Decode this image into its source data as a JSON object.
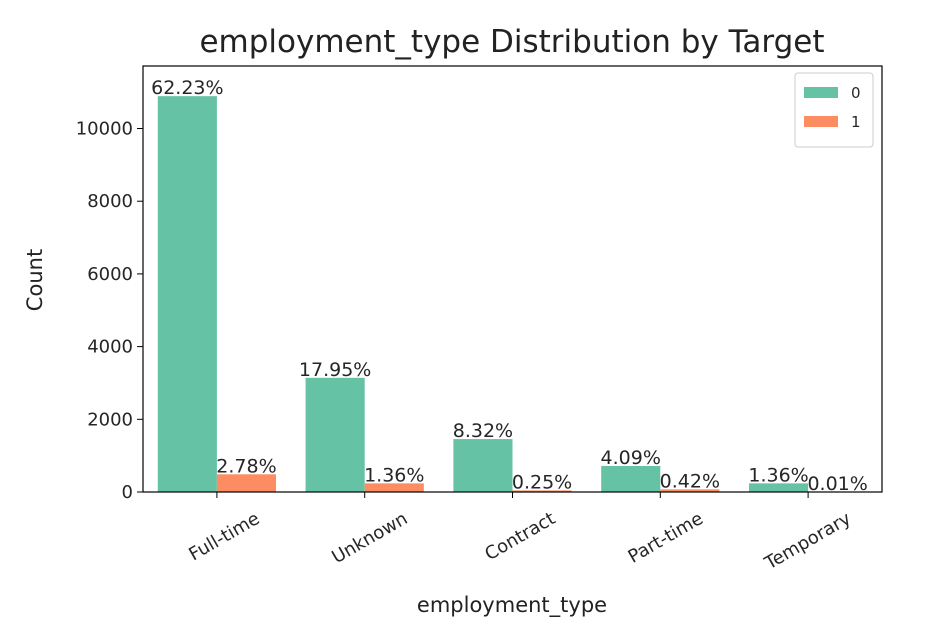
{
  "chart_data": {
    "type": "bar",
    "title": "employment_type Distribution by Target",
    "xlabel": "employment_type",
    "ylabel": "Count",
    "categories": [
      "Full-time",
      "Unknown",
      "Contract",
      "Part-time",
      "Temporary"
    ],
    "series": [
      {
        "name": "0",
        "color": "#66c2a5",
        "values": [
          10890,
          3141,
          1456,
          716,
          238
        ],
        "labels": [
          "62.23%",
          "17.95%",
          "8.32%",
          "4.09%",
          "1.36%"
        ]
      },
      {
        "name": "1",
        "color": "#fc8d62",
        "values": [
          487,
          238,
          44,
          73,
          2
        ],
        "labels": [
          "2.78%",
          "1.36%",
          "0.25%",
          "0.42%",
          "0.01%"
        ]
      }
    ],
    "ylim": [
      0,
      11720
    ],
    "yticks": [
      0,
      2000,
      4000,
      6000,
      8000,
      10000
    ],
    "grid": false,
    "legend": "top-right"
  }
}
